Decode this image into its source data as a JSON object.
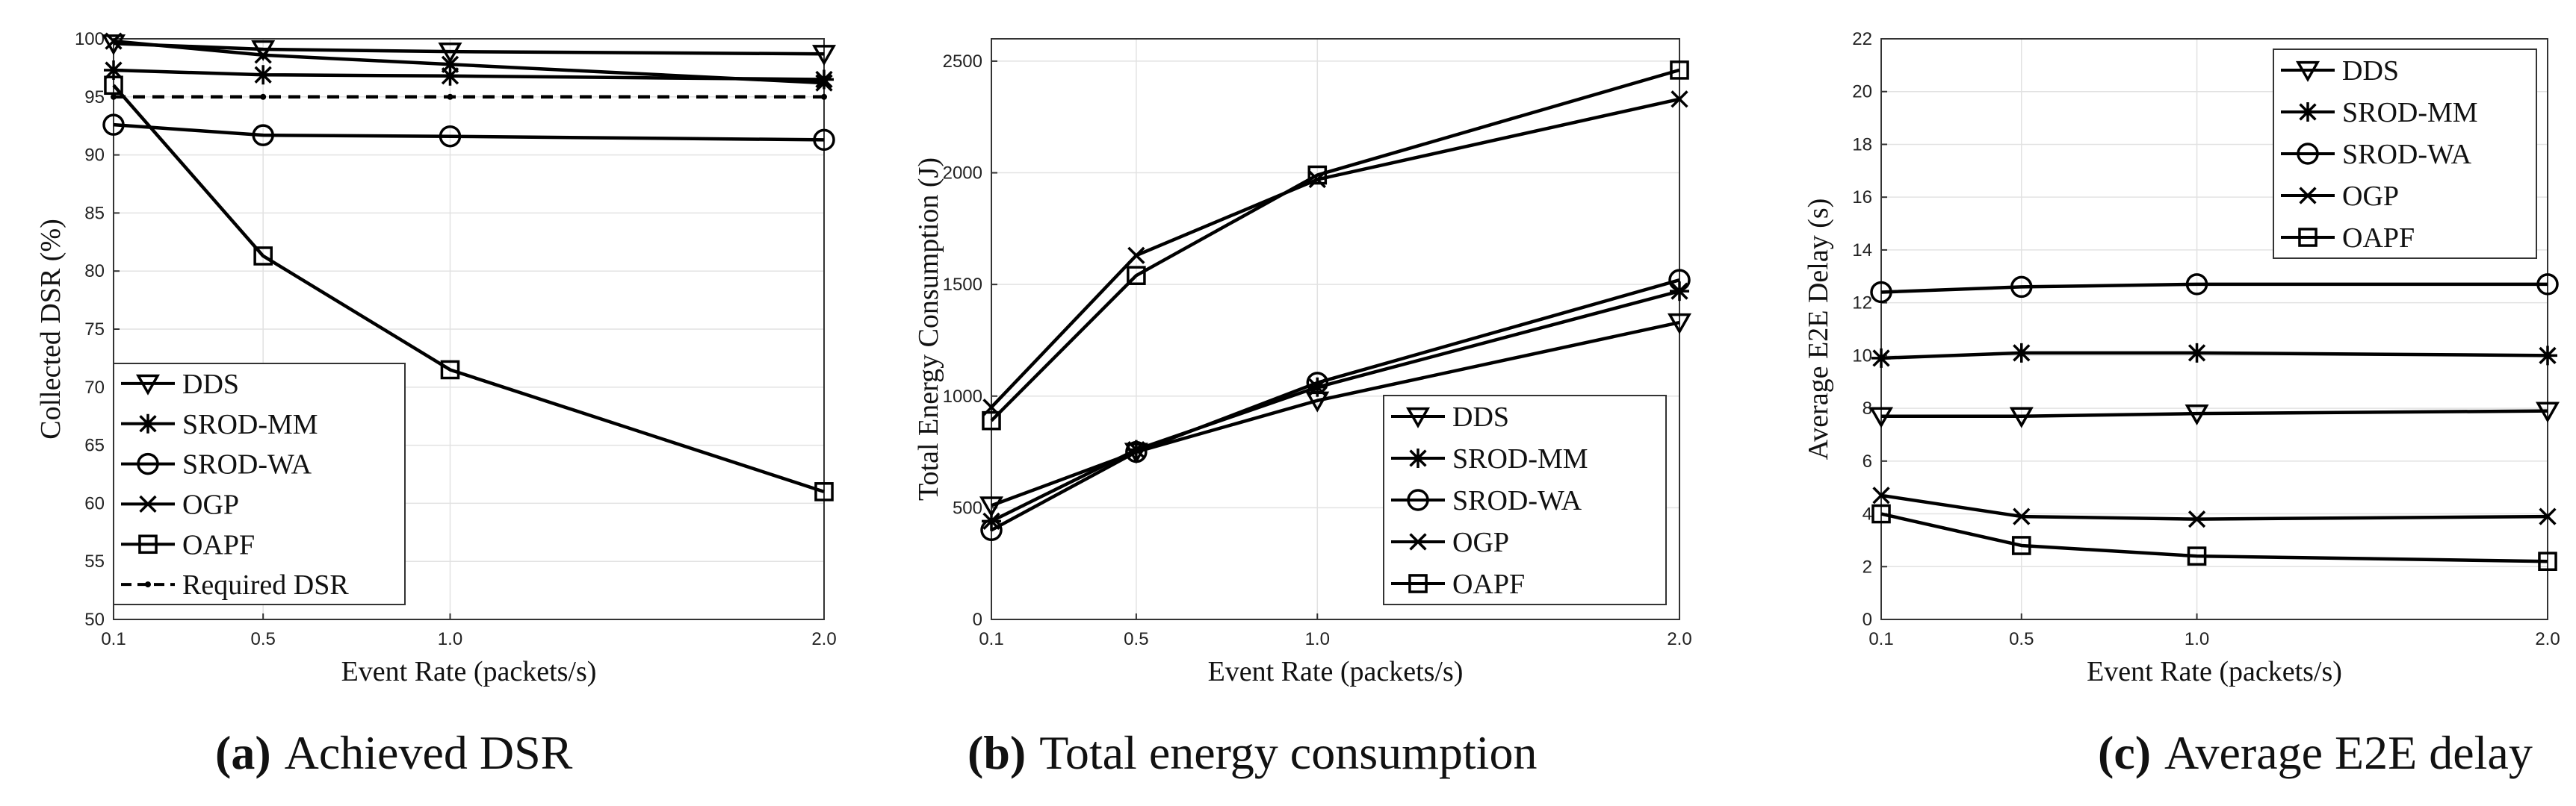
{
  "chart_data": [
    {
      "type": "line",
      "panel": "a",
      "caption_letter": "(a)",
      "caption": "Achieved DSR",
      "x": [
        "0.1",
        "0.5",
        "1.0",
        "2.0"
      ],
      "x_values": [
        0.1,
        0.5,
        1.0,
        2.0
      ],
      "xlabel": "Event Rate (packets/s)",
      "ylabel": "Collected DSR (%)",
      "ylim": [
        50,
        100
      ],
      "yticks": [
        50,
        55,
        60,
        65,
        70,
        75,
        80,
        85,
        90,
        95,
        100
      ],
      "grid": true,
      "legend_position": "bottom-left",
      "series": [
        {
          "name": "DDS",
          "marker": "triangle-down",
          "values": [
            99.6,
            99.1,
            98.9,
            98.7
          ]
        },
        {
          "name": "SROD-MM",
          "marker": "asterisk",
          "values": [
            97.3,
            96.9,
            96.8,
            96.5
          ]
        },
        {
          "name": "SROD-WA",
          "marker": "circle",
          "values": [
            92.6,
            91.7,
            91.6,
            91.3
          ]
        },
        {
          "name": "OGP",
          "marker": "x",
          "values": [
            99.8,
            98.6,
            97.8,
            96.2
          ]
        },
        {
          "name": "OAPF",
          "marker": "square",
          "values": [
            96.0,
            81.3,
            71.5,
            61.0
          ]
        },
        {
          "name": "Required DSR",
          "marker": "dot",
          "dashed": true,
          "values": [
            95,
            95,
            95,
            95
          ]
        }
      ]
    },
    {
      "type": "line",
      "panel": "b",
      "caption_letter": "(b)",
      "caption": "Total energy consumption",
      "x": [
        "0.1",
        "0.5",
        "1.0",
        "2.0"
      ],
      "x_values": [
        0.1,
        0.5,
        1.0,
        2.0
      ],
      "xlabel": "Event Rate (packets/s)",
      "ylabel": "Total Energy Consumption (J)",
      "ylim": [
        0,
        2600
      ],
      "yticks": [
        0,
        500,
        1000,
        1500,
        2000,
        2500
      ],
      "grid": true,
      "legend_position": "bottom-right",
      "series": [
        {
          "name": "DDS",
          "marker": "triangle-down",
          "values": [
            510,
            750,
            980,
            1330
          ]
        },
        {
          "name": "SROD-MM",
          "marker": "asterisk",
          "values": [
            440,
            760,
            1040,
            1470
          ]
        },
        {
          "name": "SROD-WA",
          "marker": "circle",
          "values": [
            400,
            750,
            1060,
            1520
          ]
        },
        {
          "name": "OGP",
          "marker": "x",
          "values": [
            950,
            1630,
            1970,
            2330
          ]
        },
        {
          "name": "OAPF",
          "marker": "square",
          "values": [
            890,
            1540,
            1990,
            2460
          ]
        }
      ]
    },
    {
      "type": "line",
      "panel": "c",
      "caption_letter": "(c)",
      "caption": "Average E2E delay",
      "x": [
        "0.1",
        "0.5",
        "1.0",
        "2.0"
      ],
      "x_values": [
        0.1,
        0.5,
        1.0,
        2.0
      ],
      "xlabel": "Event Rate (packets/s)",
      "ylabel": "Average E2E Delay (s)",
      "ylim": [
        0,
        22
      ],
      "yticks": [
        0,
        2,
        4,
        6,
        8,
        10,
        12,
        14,
        16,
        18,
        20,
        22
      ],
      "grid": true,
      "legend_position": "top-right",
      "series": [
        {
          "name": "DDS",
          "marker": "triangle-down",
          "values": [
            7.7,
            7.7,
            7.8,
            7.9
          ]
        },
        {
          "name": "SROD-MM",
          "marker": "asterisk",
          "values": [
            9.9,
            10.1,
            10.1,
            10.0
          ]
        },
        {
          "name": "SROD-WA",
          "marker": "circle",
          "values": [
            12.4,
            12.6,
            12.7,
            12.7
          ]
        },
        {
          "name": "OGP",
          "marker": "x",
          "values": [
            4.7,
            3.9,
            3.8,
            3.9
          ]
        },
        {
          "name": "OAPF",
          "marker": "square",
          "values": [
            4.0,
            2.8,
            2.4,
            2.2
          ]
        }
      ]
    }
  ]
}
